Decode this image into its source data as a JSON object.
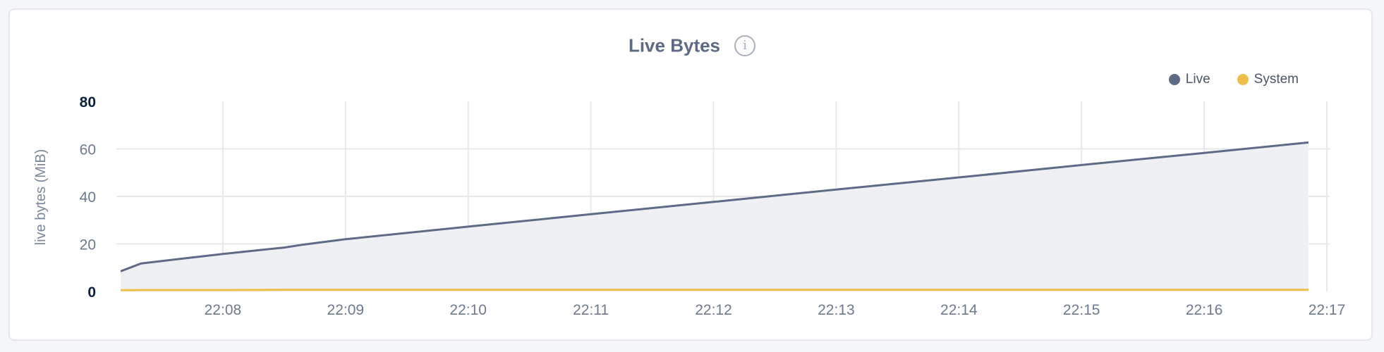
{
  "chart_data": {
    "type": "area",
    "title": "Live Bytes",
    "ylabel": "live bytes (MiB)",
    "xlabel": "",
    "ylim": [
      0,
      80
    ],
    "yticks": [
      "0",
      "20",
      "40",
      "60",
      "80"
    ],
    "xlim": [
      "22:07:10",
      "22:17:00"
    ],
    "xticks": [
      "22:08",
      "22:09",
      "22:10",
      "22:11",
      "22:12",
      "22:13",
      "22:14",
      "22:15",
      "22:16",
      "22:17"
    ],
    "grid": true,
    "legend_position": "top-right",
    "x": [
      "22:07:10",
      "22:07:20",
      "22:08:00",
      "22:08:30",
      "22:08:40",
      "22:09:00",
      "22:10:00",
      "22:11:00",
      "22:12:00",
      "22:13:00",
      "22:14:00",
      "22:15:00",
      "22:16:00",
      "22:16:51"
    ],
    "series": [
      {
        "name": "Live",
        "color": "#5f6b86",
        "fill": "#eef0f4",
        "values": [
          8.5,
          11.8,
          15.8,
          18.5,
          19.8,
          22.0,
          27.3,
          32.5,
          37.7,
          42.9,
          48.0,
          53.2,
          58.3,
          62.7
        ]
      },
      {
        "name": "System",
        "color": "#eec04a",
        "values": [
          0.5,
          0.6,
          0.6,
          0.7,
          0.7,
          0.7,
          0.7,
          0.7,
          0.7,
          0.7,
          0.7,
          0.7,
          0.7,
          0.7
        ]
      }
    ]
  },
  "info_icon": "info-circle-icon"
}
